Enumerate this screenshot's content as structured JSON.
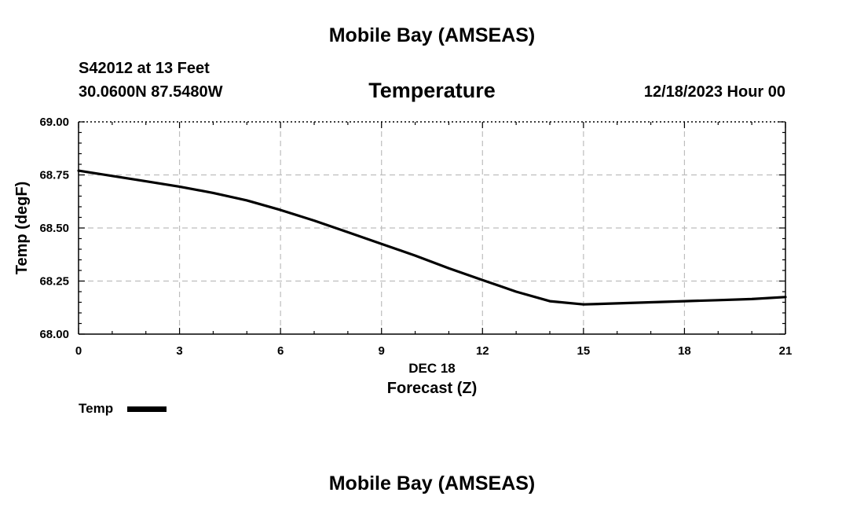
{
  "header": {
    "title": "Mobile Bay (AMSEAS)",
    "station": "S42012 at 13 Feet",
    "location": "30.0600N  87.5480W",
    "variable": "Temperature",
    "datetime": "12/18/2023 Hour 00"
  },
  "footer": {
    "title": "Mobile Bay (AMSEAS)"
  },
  "chart_data": {
    "type": "line",
    "xlabel": "Forecast (Z)",
    "xsublabel": "DEC 18",
    "ylabel": "Temp (degF)",
    "xlim": [
      0,
      21
    ],
    "ylim": [
      68.0,
      69.0
    ],
    "xticks": [
      0,
      3,
      6,
      9,
      12,
      15,
      18,
      21
    ],
    "xtick_labels": [
      "0",
      "3",
      "6",
      "9",
      "12",
      "15",
      "18",
      "21"
    ],
    "yticks": [
      68.0,
      68.25,
      68.5,
      68.75,
      69.0
    ],
    "ytick_labels": [
      "68.00",
      "68.25",
      "68.50",
      "68.75",
      "69.00"
    ],
    "grid": true,
    "legend": "bottom-left",
    "series": [
      {
        "name": "Temp",
        "color": "#000000",
        "x": [
          0,
          1,
          2,
          3,
          4,
          5,
          6,
          7,
          8,
          9,
          10,
          11,
          12,
          13,
          14,
          15,
          16,
          17,
          18,
          19,
          20,
          21
        ],
        "y": [
          68.77,
          68.745,
          68.72,
          68.695,
          68.665,
          68.63,
          68.585,
          68.535,
          68.48,
          68.425,
          68.37,
          68.31,
          68.255,
          68.2,
          68.155,
          68.14,
          68.145,
          68.15,
          68.155,
          68.16,
          68.165,
          68.175
        ]
      }
    ]
  }
}
